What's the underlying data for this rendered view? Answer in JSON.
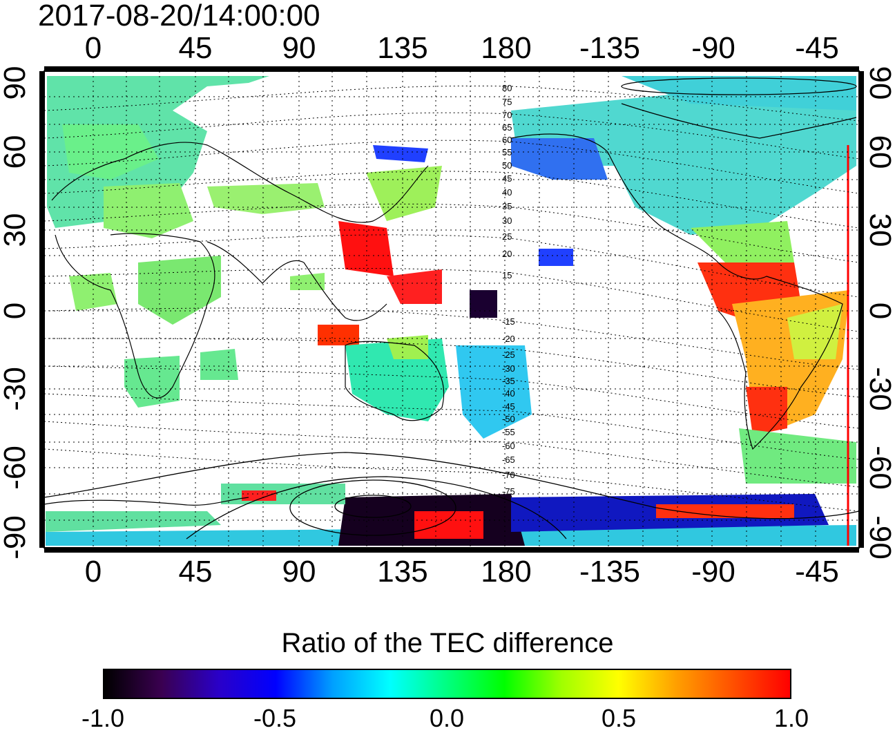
{
  "title": "2017-08-20/14:00:00",
  "map": {
    "lon_ticks": [
      "0",
      "45",
      "90",
      "135",
      "180",
      "-135",
      "-90",
      "-45"
    ],
    "lat_ticks": [
      "90",
      "60",
      "30",
      "0",
      "-30",
      "-60",
      "-90"
    ],
    "magnetic_lat_labels": [
      "80",
      "75",
      "70",
      "65",
      "60",
      "55",
      "50",
      "45",
      "40",
      "35",
      "30",
      "25",
      "20",
      "15",
      "-15",
      "-20",
      "-25",
      "-30",
      "-35",
      "-40",
      "-45",
      "-50",
      "-55",
      "-60",
      "-65",
      "-70",
      "-75"
    ]
  },
  "colorbar": {
    "title": "Ratio of the TEC difference",
    "ticks": [
      "-1.0",
      "-0.5",
      "0.0",
      "0.5",
      "1.0"
    ],
    "range": [
      -1.0,
      1.0
    ],
    "colors": [
      "#000000",
      "#3a0050",
      "#2a00c8",
      "#0000ff",
      "#00a0ff",
      "#00ffff",
      "#00ff80",
      "#00ff00",
      "#a0ff00",
      "#ffff00",
      "#ffa000",
      "#ff5000",
      "#ff0000"
    ]
  }
}
